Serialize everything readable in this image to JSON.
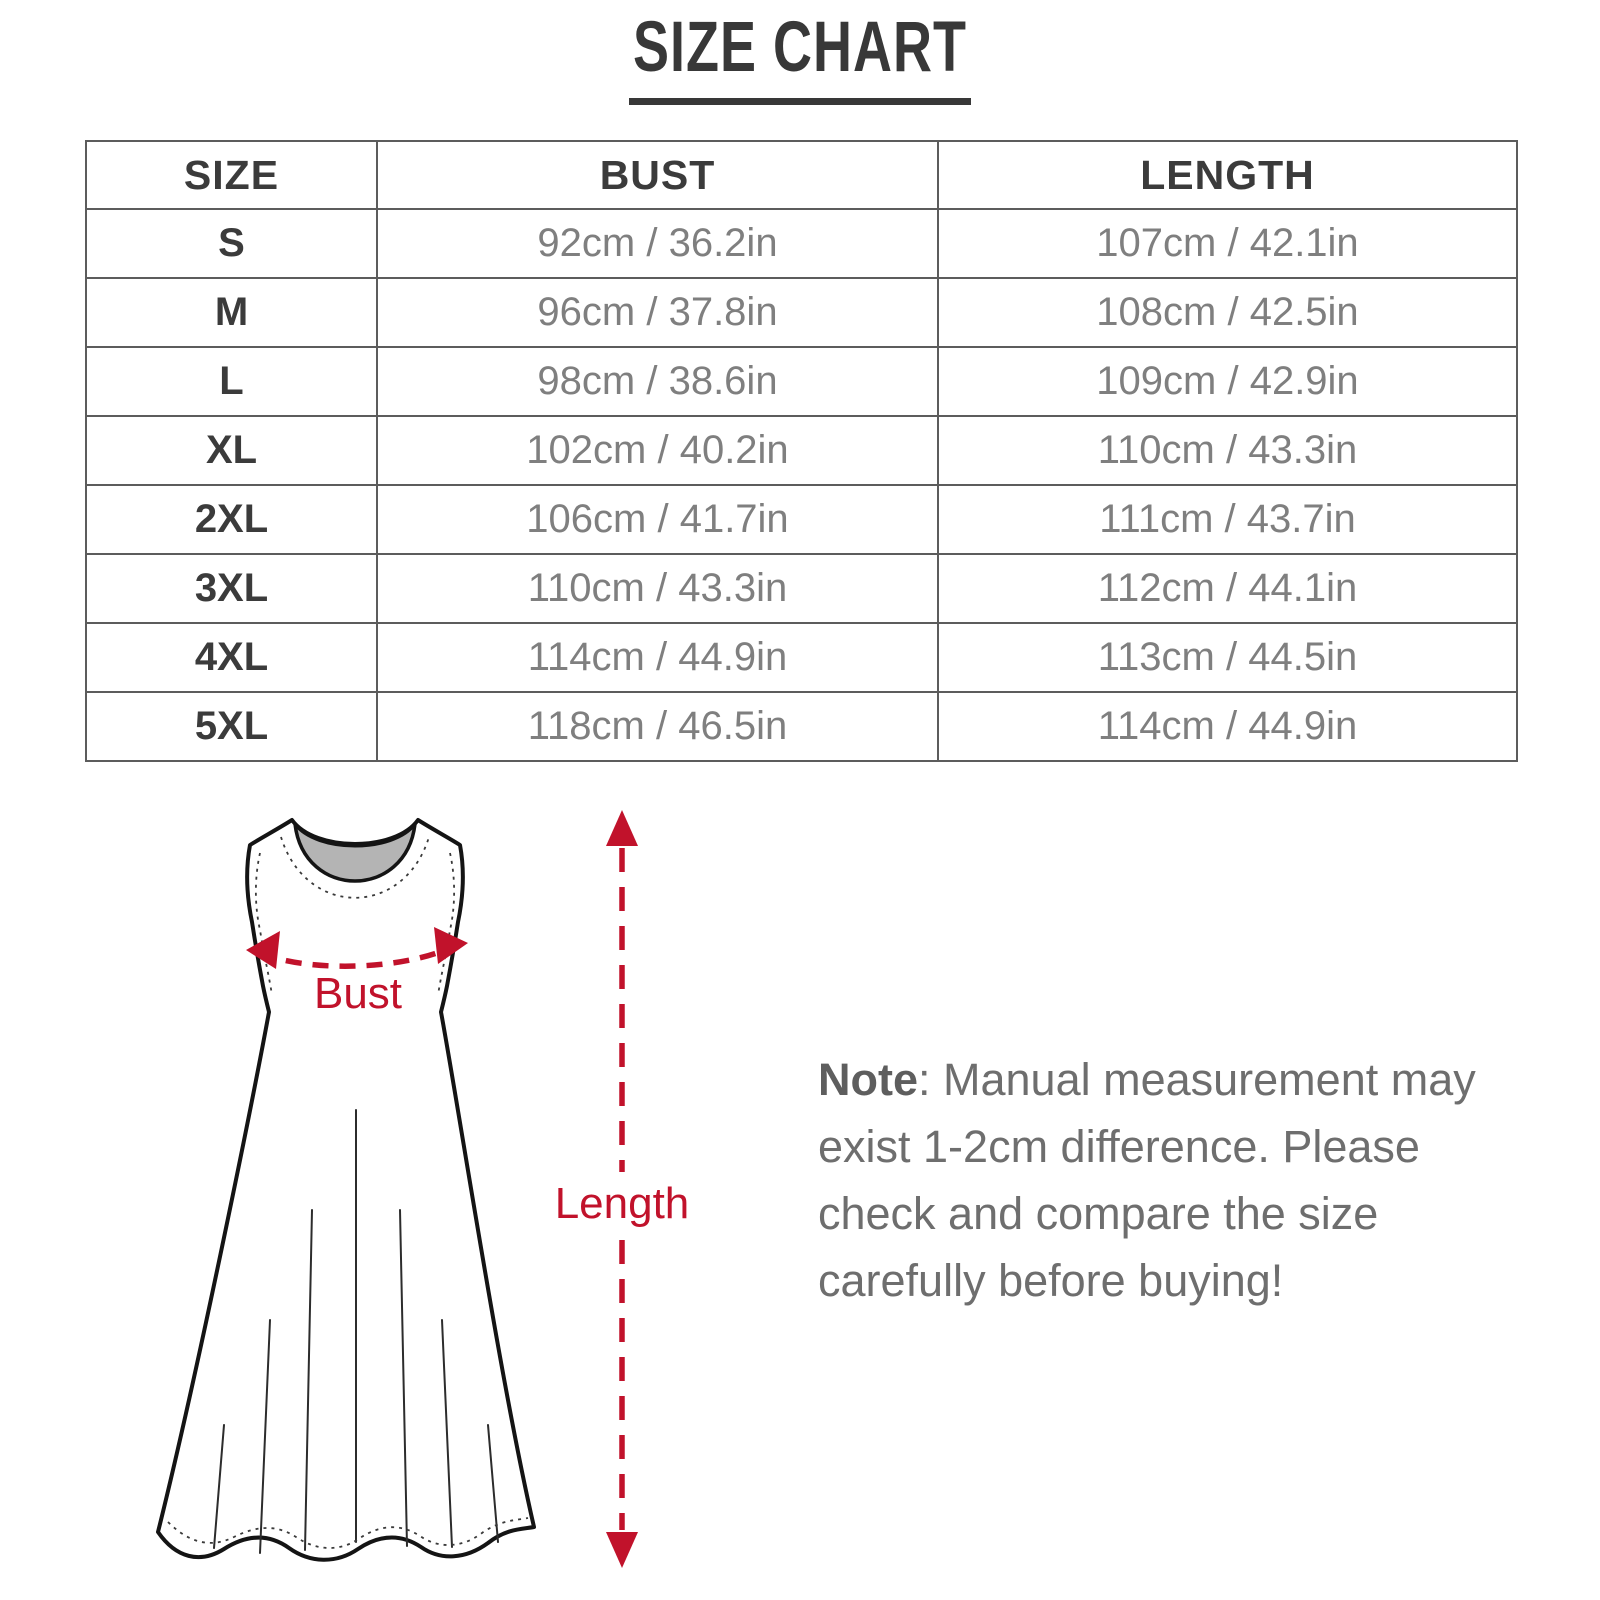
{
  "title": "SIZE CHART",
  "chart_data": {
    "type": "table",
    "title": "SIZE CHART",
    "columns": [
      "SIZE",
      "BUST",
      "LENGTH"
    ],
    "rows": [
      [
        "S",
        "92cm / 36.2in",
        "107cm / 42.1in"
      ],
      [
        "M",
        "96cm / 37.8in",
        "108cm / 42.5in"
      ],
      [
        "L",
        "98cm / 38.6in",
        "109cm / 42.9in"
      ],
      [
        "XL",
        "102cm / 40.2in",
        "110cm / 43.3in"
      ],
      [
        "2XL",
        "106cm / 41.7in",
        "111cm / 43.7in"
      ],
      [
        "3XL",
        "110cm / 43.3in",
        "112cm / 44.1in"
      ],
      [
        "4XL",
        "114cm / 44.9in",
        "113cm / 44.5in"
      ],
      [
        "5XL",
        "118cm / 46.5in",
        "114cm / 44.9in"
      ]
    ],
    "categories": [
      "S",
      "M",
      "L",
      "XL",
      "2XL",
      "3XL",
      "4XL",
      "5XL"
    ],
    "series": [
      {
        "name": "BUST (cm)",
        "values": [
          92,
          96,
          98,
          102,
          106,
          110,
          114,
          118
        ]
      },
      {
        "name": "LENGTH (cm)",
        "values": [
          107,
          108,
          109,
          110,
          111,
          112,
          113,
          114
        ]
      }
    ]
  },
  "diagram": {
    "bust_label": "Bust",
    "length_label": "Length",
    "arrow_color": "#c1122b",
    "neckline_color": "#b4b4b4",
    "outline_color": "#141414"
  },
  "note": {
    "prefix": "Note",
    "lines": [
      ": Manual measurement may",
      "exist 1-2cm difference. Please",
      "check and compare the size",
      "carefully before buying!"
    ]
  }
}
